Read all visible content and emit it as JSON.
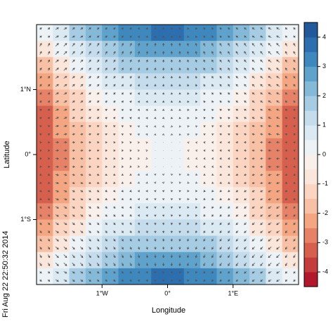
{
  "chart_data": {
    "type": "heatmap",
    "x_label": "Longitude",
    "y_label": "Latitude",
    "timestamp": "Fri Aug 22 22:50:32 2014",
    "xlim": [
      -2,
      2
    ],
    "ylim": [
      -2,
      2
    ],
    "xticks": [
      {
        "value": -1,
        "label": "1°W"
      },
      {
        "value": 0,
        "label": "0°"
      },
      {
        "value": 1,
        "label": "1°E"
      }
    ],
    "yticks": [
      {
        "value": 1,
        "label": "1°N"
      },
      {
        "value": 0,
        "label": "0°"
      },
      {
        "value": -1,
        "label": "1°S"
      }
    ],
    "arrows": true,
    "arrow_color": "#555555",
    "z": [
      [
        0,
        0.9,
        1.6,
        2.2,
        2.7,
        3.1,
        3.4,
        3.5,
        3.5,
        3.4,
        3.1,
        2.7,
        2.2,
        1.6,
        0.9,
        0
      ],
      [
        -0.9,
        0,
        0.7,
        1.3,
        1.8,
        2.2,
        2.5,
        2.6,
        2.6,
        2.5,
        2.2,
        1.8,
        1.3,
        0.7,
        0,
        -0.9
      ],
      [
        -1.6,
        -0.7,
        0,
        0.6,
        1.1,
        1.5,
        1.8,
        1.9,
        1.9,
        1.8,
        1.5,
        1.1,
        0.6,
        0,
        -0.7,
        -1.6
      ],
      [
        -2.2,
        -1.3,
        -0.6,
        0,
        0.5,
        0.9,
        1.2,
        1.3,
        1.3,
        1.2,
        0.9,
        0.5,
        0,
        -0.6,
        -1.3,
        -2.2
      ],
      [
        -2.7,
        -1.8,
        -1.1,
        -0.5,
        0,
        0.4,
        0.7,
        0.8,
        0.8,
        0.7,
        0.4,
        0,
        -0.5,
        -1.1,
        -1.8,
        -2.7
      ],
      [
        -3.1,
        -2.2,
        -1.5,
        -0.9,
        -0.4,
        0,
        0.3,
        0.4,
        0.4,
        0.3,
        0,
        -0.4,
        -0.9,
        -1.5,
        -2.2,
        -3.1
      ],
      [
        -3.4,
        -2.5,
        -1.8,
        -1.2,
        -0.7,
        -0.3,
        0,
        0.1,
        0.1,
        0,
        -0.3,
        -0.7,
        -1.2,
        -1.8,
        -2.5,
        -3.4
      ],
      [
        -3.5,
        -2.6,
        -1.9,
        -1.3,
        -0.8,
        -0.4,
        -0.1,
        0,
        0,
        -0.1,
        -0.4,
        -0.8,
        -1.3,
        -1.9,
        -2.6,
        -3.5
      ],
      [
        -3.5,
        -2.6,
        -1.9,
        -1.3,
        -0.8,
        -0.4,
        -0.1,
        0,
        0,
        -0.1,
        -0.4,
        -0.8,
        -1.3,
        -1.9,
        -2.6,
        -3.5
      ],
      [
        -3.4,
        -2.5,
        -1.8,
        -1.2,
        -0.7,
        -0.3,
        0,
        0.1,
        0.1,
        0,
        -0.3,
        -0.7,
        -1.2,
        -1.8,
        -2.5,
        -3.4
      ],
      [
        -3.1,
        -2.2,
        -1.5,
        -0.9,
        -0.4,
        0,
        0.3,
        0.4,
        0.4,
        0.3,
        0,
        -0.4,
        -0.9,
        -1.5,
        -2.2,
        -3.1
      ],
      [
        -2.7,
        -1.8,
        -1.1,
        -0.5,
        0,
        0.4,
        0.7,
        0.8,
        0.8,
        0.7,
        0.4,
        0,
        -0.5,
        -1.1,
        -1.8,
        -2.7
      ],
      [
        -2.2,
        -1.3,
        -0.6,
        0,
        0.5,
        0.9,
        1.2,
        1.3,
        1.3,
        1.2,
        0.9,
        0.5,
        0,
        -0.6,
        -1.3,
        -2.2
      ],
      [
        -1.6,
        -0.7,
        0,
        0.6,
        1.1,
        1.5,
        1.8,
        1.9,
        1.9,
        1.8,
        1.5,
        1.1,
        0.6,
        0,
        -0.7,
        -1.6
      ],
      [
        -0.9,
        0,
        0.7,
        1.3,
        1.8,
        2.2,
        2.5,
        2.6,
        2.6,
        2.5,
        2.2,
        1.8,
        1.3,
        0.7,
        0,
        -0.9
      ],
      [
        0,
        0.9,
        1.6,
        2.2,
        2.7,
        3.1,
        3.4,
        3.5,
        3.5,
        3.4,
        3.1,
        2.7,
        2.2,
        1.6,
        0.9,
        0
      ]
    ],
    "colorbar": {
      "zlim": [
        -4.5,
        4.5
      ],
      "ticks": [
        -4,
        -3,
        -2,
        -1,
        0,
        1,
        2,
        3,
        4
      ],
      "colors": [
        "#b2182b",
        "#c43c3c",
        "#d6604d",
        "#e58267",
        "#f4a582",
        "#f8c0a4",
        "#fbd5c2",
        "#fbe6dc",
        "#f9f0ec",
        "#edf2f6",
        "#dbe9f2",
        "#c4dcec",
        "#a5cce3",
        "#85b9d8",
        "#5fa2cb",
        "#3f88bd",
        "#2d6fae",
        "#21599b"
      ]
    }
  }
}
